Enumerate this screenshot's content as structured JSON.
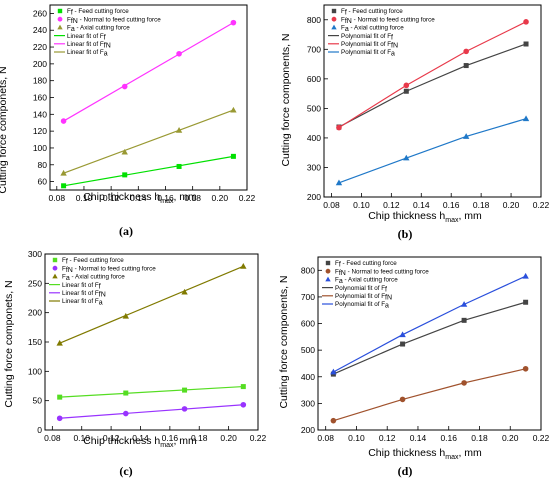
{
  "chart_data": [
    {
      "type": "line",
      "panel_label": "(a)",
      "xlabel": "Chip thickness h",
      "xlabel_sub": "max",
      "xlabel_tail": ", mm",
      "ylabel": "Cutting force componets, N",
      "xlim": [
        0.075,
        0.22
      ],
      "ylim": [
        50,
        270
      ],
      "xticks": [
        0.08,
        0.1,
        0.12,
        0.14,
        0.16,
        0.18,
        0.2,
        0.22
      ],
      "yticks": [
        60,
        80,
        100,
        120,
        140,
        160,
        180,
        200,
        220,
        240,
        260
      ],
      "x": [
        0.085,
        0.13,
        0.17,
        0.21
      ],
      "fit_kind": "linear",
      "legend_position": "top-left",
      "series": [
        {
          "name": "F",
          "name_sub": "f",
          "name_tail": " - Feed cutting force",
          "fit_label": "Linear fit of F",
          "fit_label_sub": "f",
          "color": "#00e000",
          "marker": "square",
          "values": [
            55,
            68,
            78,
            90
          ]
        },
        {
          "name": "F",
          "name_sub": "fN",
          "name_tail": " - Normal to feed cutting force",
          "fit_label": "Linear fit of F",
          "fit_label_sub": "fN",
          "color": "#ff33ff",
          "marker": "circle",
          "values": [
            132,
            173,
            212,
            249
          ]
        },
        {
          "name": "F",
          "name_sub": "a",
          "name_tail": " - Axial cutting force",
          "fit_label": "Linear fit of F",
          "fit_label_sub": "a",
          "color": "#999933",
          "marker": "triangle",
          "values": [
            70,
            95,
            121,
            145
          ]
        }
      ]
    },
    {
      "type": "line",
      "panel_label": "(b)",
      "xlabel": "Chip thickness h",
      "xlabel_sub": "max",
      "xlabel_tail": ", mm",
      "ylabel": "Cutting force components, N",
      "xlim": [
        0.075,
        0.22
      ],
      "ylim": [
        200,
        850
      ],
      "xticks": [
        0.08,
        0.1,
        0.12,
        0.14,
        0.16,
        0.18,
        0.2,
        0.22
      ],
      "yticks": [
        200,
        300,
        400,
        500,
        600,
        700,
        800
      ],
      "x": [
        0.085,
        0.13,
        0.17,
        0.21
      ],
      "fit_kind": "polynomial",
      "legend_position": "top-left",
      "series": [
        {
          "name": "F",
          "name_sub": "f",
          "name_tail": " - Feed cutting force",
          "fit_label": "Polynomial fit of F",
          "fit_label_sub": "f",
          "color": "#444444",
          "marker": "square",
          "values": [
            437,
            558,
            645,
            718
          ]
        },
        {
          "name": "F",
          "name_sub": "fN",
          "name_tail": " - Normal to feed cutting force",
          "fit_label": "Polynomial fit of F",
          "fit_label_sub": "fN",
          "color": "#e8394a",
          "marker": "circle",
          "values": [
            435,
            578,
            693,
            793
          ]
        },
        {
          "name": "F",
          "name_sub": "a",
          "name_tail": " - Axial cutting force",
          "fit_label": "Polynomial fit of F",
          "fit_label_sub": "a",
          "color": "#1f78c8",
          "marker": "triangle",
          "values": [
            248,
            332,
            405,
            465
          ]
        }
      ]
    },
    {
      "type": "line",
      "panel_label": "(c)",
      "xlabel": "Chip thickness h",
      "xlabel_sub": "max",
      "xlabel_tail": ", mm",
      "ylabel": "Cutting force componets, N",
      "xlim": [
        0.075,
        0.22
      ],
      "ylim": [
        0,
        300
      ],
      "xticks": [
        0.08,
        0.1,
        0.12,
        0.14,
        0.16,
        0.18,
        0.2,
        0.22
      ],
      "yticks": [
        0,
        50,
        100,
        150,
        200,
        250,
        300
      ],
      "x": [
        0.085,
        0.13,
        0.17,
        0.21
      ],
      "fit_kind": "linear",
      "legend_position": "top-left",
      "series": [
        {
          "name": "F",
          "name_sub": "f",
          "name_tail": " - Feed cutting force",
          "fit_label": "Linear fit of F",
          "fit_label_sub": "f",
          "color": "#55dd22",
          "marker": "square",
          "values": [
            56,
            63,
            68,
            74
          ]
        },
        {
          "name": "F",
          "name_sub": "fN",
          "name_tail": " - Normal to feed cutting force",
          "fit_label": "Linear fit of F",
          "fit_label_sub": "fN",
          "color": "#9933ff",
          "marker": "circle",
          "values": [
            20,
            28,
            36,
            43
          ]
        },
        {
          "name": "F",
          "name_sub": "a",
          "name_tail": " - Axial cutting force",
          "fit_label": "Linear fit of F",
          "fit_label_sub": "a",
          "color": "#807a00",
          "marker": "triangle",
          "values": [
            148,
            194,
            235,
            279
          ]
        }
      ]
    },
    {
      "type": "line",
      "panel_label": "(d)",
      "xlabel": "Chip thickness h",
      "xlabel_sub": "max",
      "xlabel_tail": ", mm",
      "ylabel": "Cutting force components, N",
      "xlim": [
        0.075,
        0.22
      ],
      "ylim": [
        200,
        850
      ],
      "xticks": [
        0.08,
        0.1,
        0.12,
        0.14,
        0.16,
        0.18,
        0.2,
        0.22
      ],
      "yticks": [
        200,
        300,
        400,
        500,
        600,
        700,
        800
      ],
      "x": [
        0.085,
        0.13,
        0.17,
        0.21
      ],
      "fit_kind": "polynomial",
      "legend_position": "top-left",
      "series": [
        {
          "name": "F",
          "name_sub": "f",
          "name_tail": " - Feed cutting force",
          "fit_label": "Polynomial fit of F",
          "fit_label_sub": "f",
          "color": "#444444",
          "marker": "square",
          "values": [
            410,
            523,
            612,
            680
          ]
        },
        {
          "name": "F",
          "name_sub": "fN",
          "name_tail": " - Normal to feed cutting force",
          "fit_label": "Polynomial fit of F",
          "fit_label_sub": "fN",
          "color": "#a0522d",
          "marker": "circle",
          "values": [
            235,
            315,
            377,
            430
          ]
        },
        {
          "name": "F",
          "name_sub": "a",
          "name_tail": " - Axial cutting force",
          "fit_label": "Polynomial fit of F",
          "fit_label_sub": "a",
          "color": "#2a4fdc",
          "marker": "triangle",
          "values": [
            418,
            558,
            672,
            778
          ]
        }
      ]
    }
  ]
}
